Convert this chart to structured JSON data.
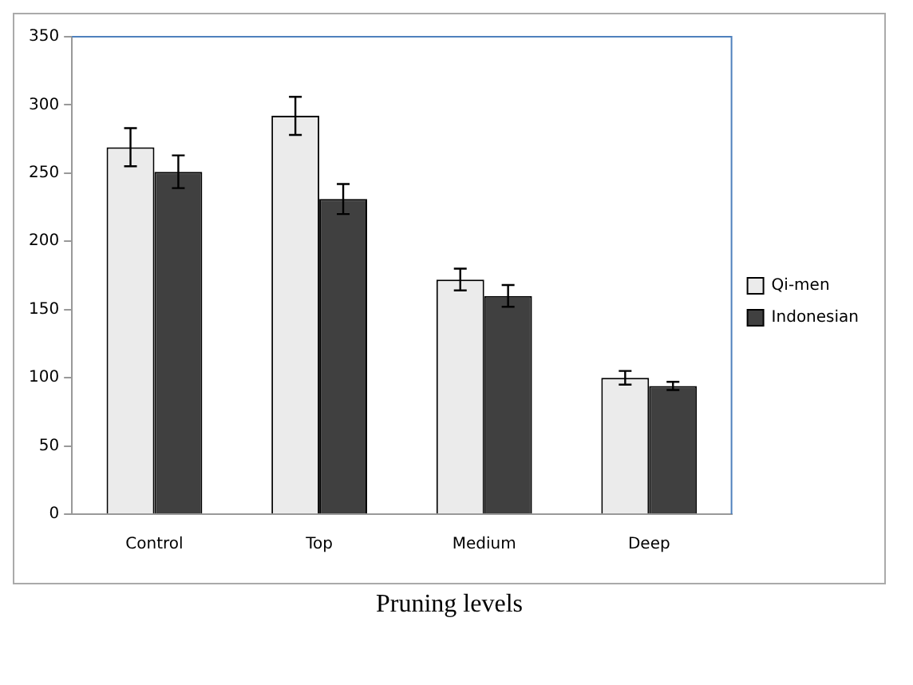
{
  "chart_data": {
    "type": "bar",
    "xlabel": "Pruning levels",
    "categories": [
      "Control",
      "Top",
      "Medium",
      "Deep"
    ],
    "series": [
      {
        "name": "Qi-men",
        "color": "#ebebeb",
        "values": [
          269,
          292,
          172,
          100
        ],
        "errors": [
          14,
          14,
          8,
          5
        ]
      },
      {
        "name": "Indonesian",
        "color": "#404040",
        "values": [
          251,
          231,
          160,
          94
        ],
        "errors": [
          12,
          11,
          8,
          3
        ]
      }
    ],
    "ylim": [
      0,
      350
    ],
    "yticks": [
      0,
      50,
      100,
      150,
      200,
      250,
      300,
      350
    ],
    "grid": false,
    "legend": "right"
  }
}
